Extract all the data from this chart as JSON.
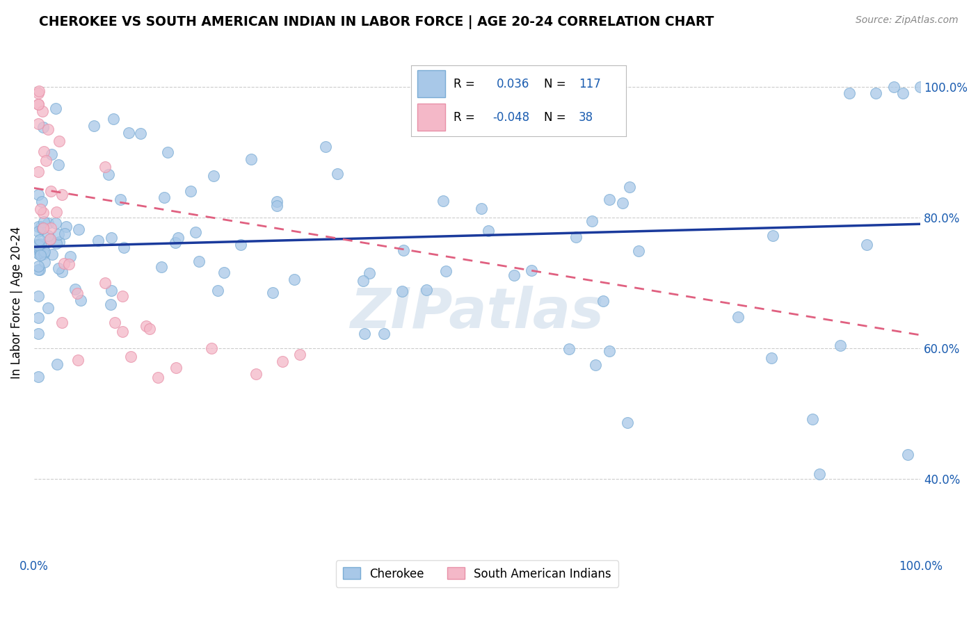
{
  "title": "CHEROKEE VS SOUTH AMERICAN INDIAN IN LABOR FORCE | AGE 20-24 CORRELATION CHART",
  "source": "Source: ZipAtlas.com",
  "ylabel": "In Labor Force | Age 20-24",
  "r_cherokee": 0.036,
  "n_cherokee": 117,
  "r_south_american": -0.048,
  "n_south_american": 38,
  "cherokee_color": "#a8c8e8",
  "cherokee_edge": "#7aacd4",
  "south_american_color": "#f4b8c8",
  "south_american_edge": "#e890a8",
  "trend_cherokee_color": "#1a3a9c",
  "trend_south_american_color": "#e06080",
  "watermark": "ZIPatlas",
  "legend_r1": "0.036",
  "legend_n1": "117",
  "legend_r2": "-0.048",
  "legend_n2": "38",
  "ytick_vals": [
    0.4,
    0.6,
    0.8,
    1.0
  ],
  "ytick_labels": [
    "40.0%",
    "60.0%",
    "80.0%",
    "100.0%"
  ],
  "xtick_labels": [
    "0.0%",
    "",
    "",
    "",
    "",
    "",
    "",
    "",
    "",
    "",
    "100.0%"
  ],
  "ylim_low": 0.28,
  "ylim_high": 1.06
}
